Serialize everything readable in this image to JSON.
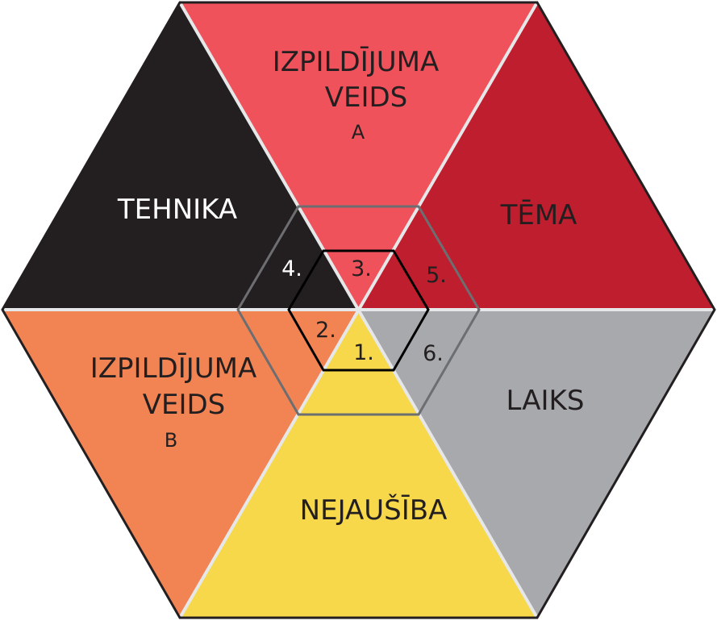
{
  "diagram": {
    "segments": {
      "top": {
        "line1": "IZPILDĪJUMA",
        "line2": "VEIDS",
        "sub": "A",
        "color": "#ef525b"
      },
      "top_right": {
        "line1": "TĒMA",
        "color": "#be1e2d"
      },
      "bottom_right": {
        "line1": "LAIKS",
        "color": "#a8a9ad"
      },
      "bottom": {
        "line1": "NEJAUŠĪBA",
        "color": "#f6d84a"
      },
      "bottom_left": {
        "line1": "IZPILDĪJUMA",
        "line2": "VEIDS",
        "sub": "B",
        "color": "#f28453"
      },
      "top_left": {
        "line1": "TEHNIKA",
        "color": "#231f20"
      }
    },
    "numbers": [
      "1.",
      "2.",
      "3.",
      "4.",
      "5.",
      "6."
    ],
    "outline_color": "#231f20",
    "separator_color": "#e6e7e8",
    "middle_hexagon_color": "#6d6e71",
    "inner_hexagon_color": "#000000"
  }
}
